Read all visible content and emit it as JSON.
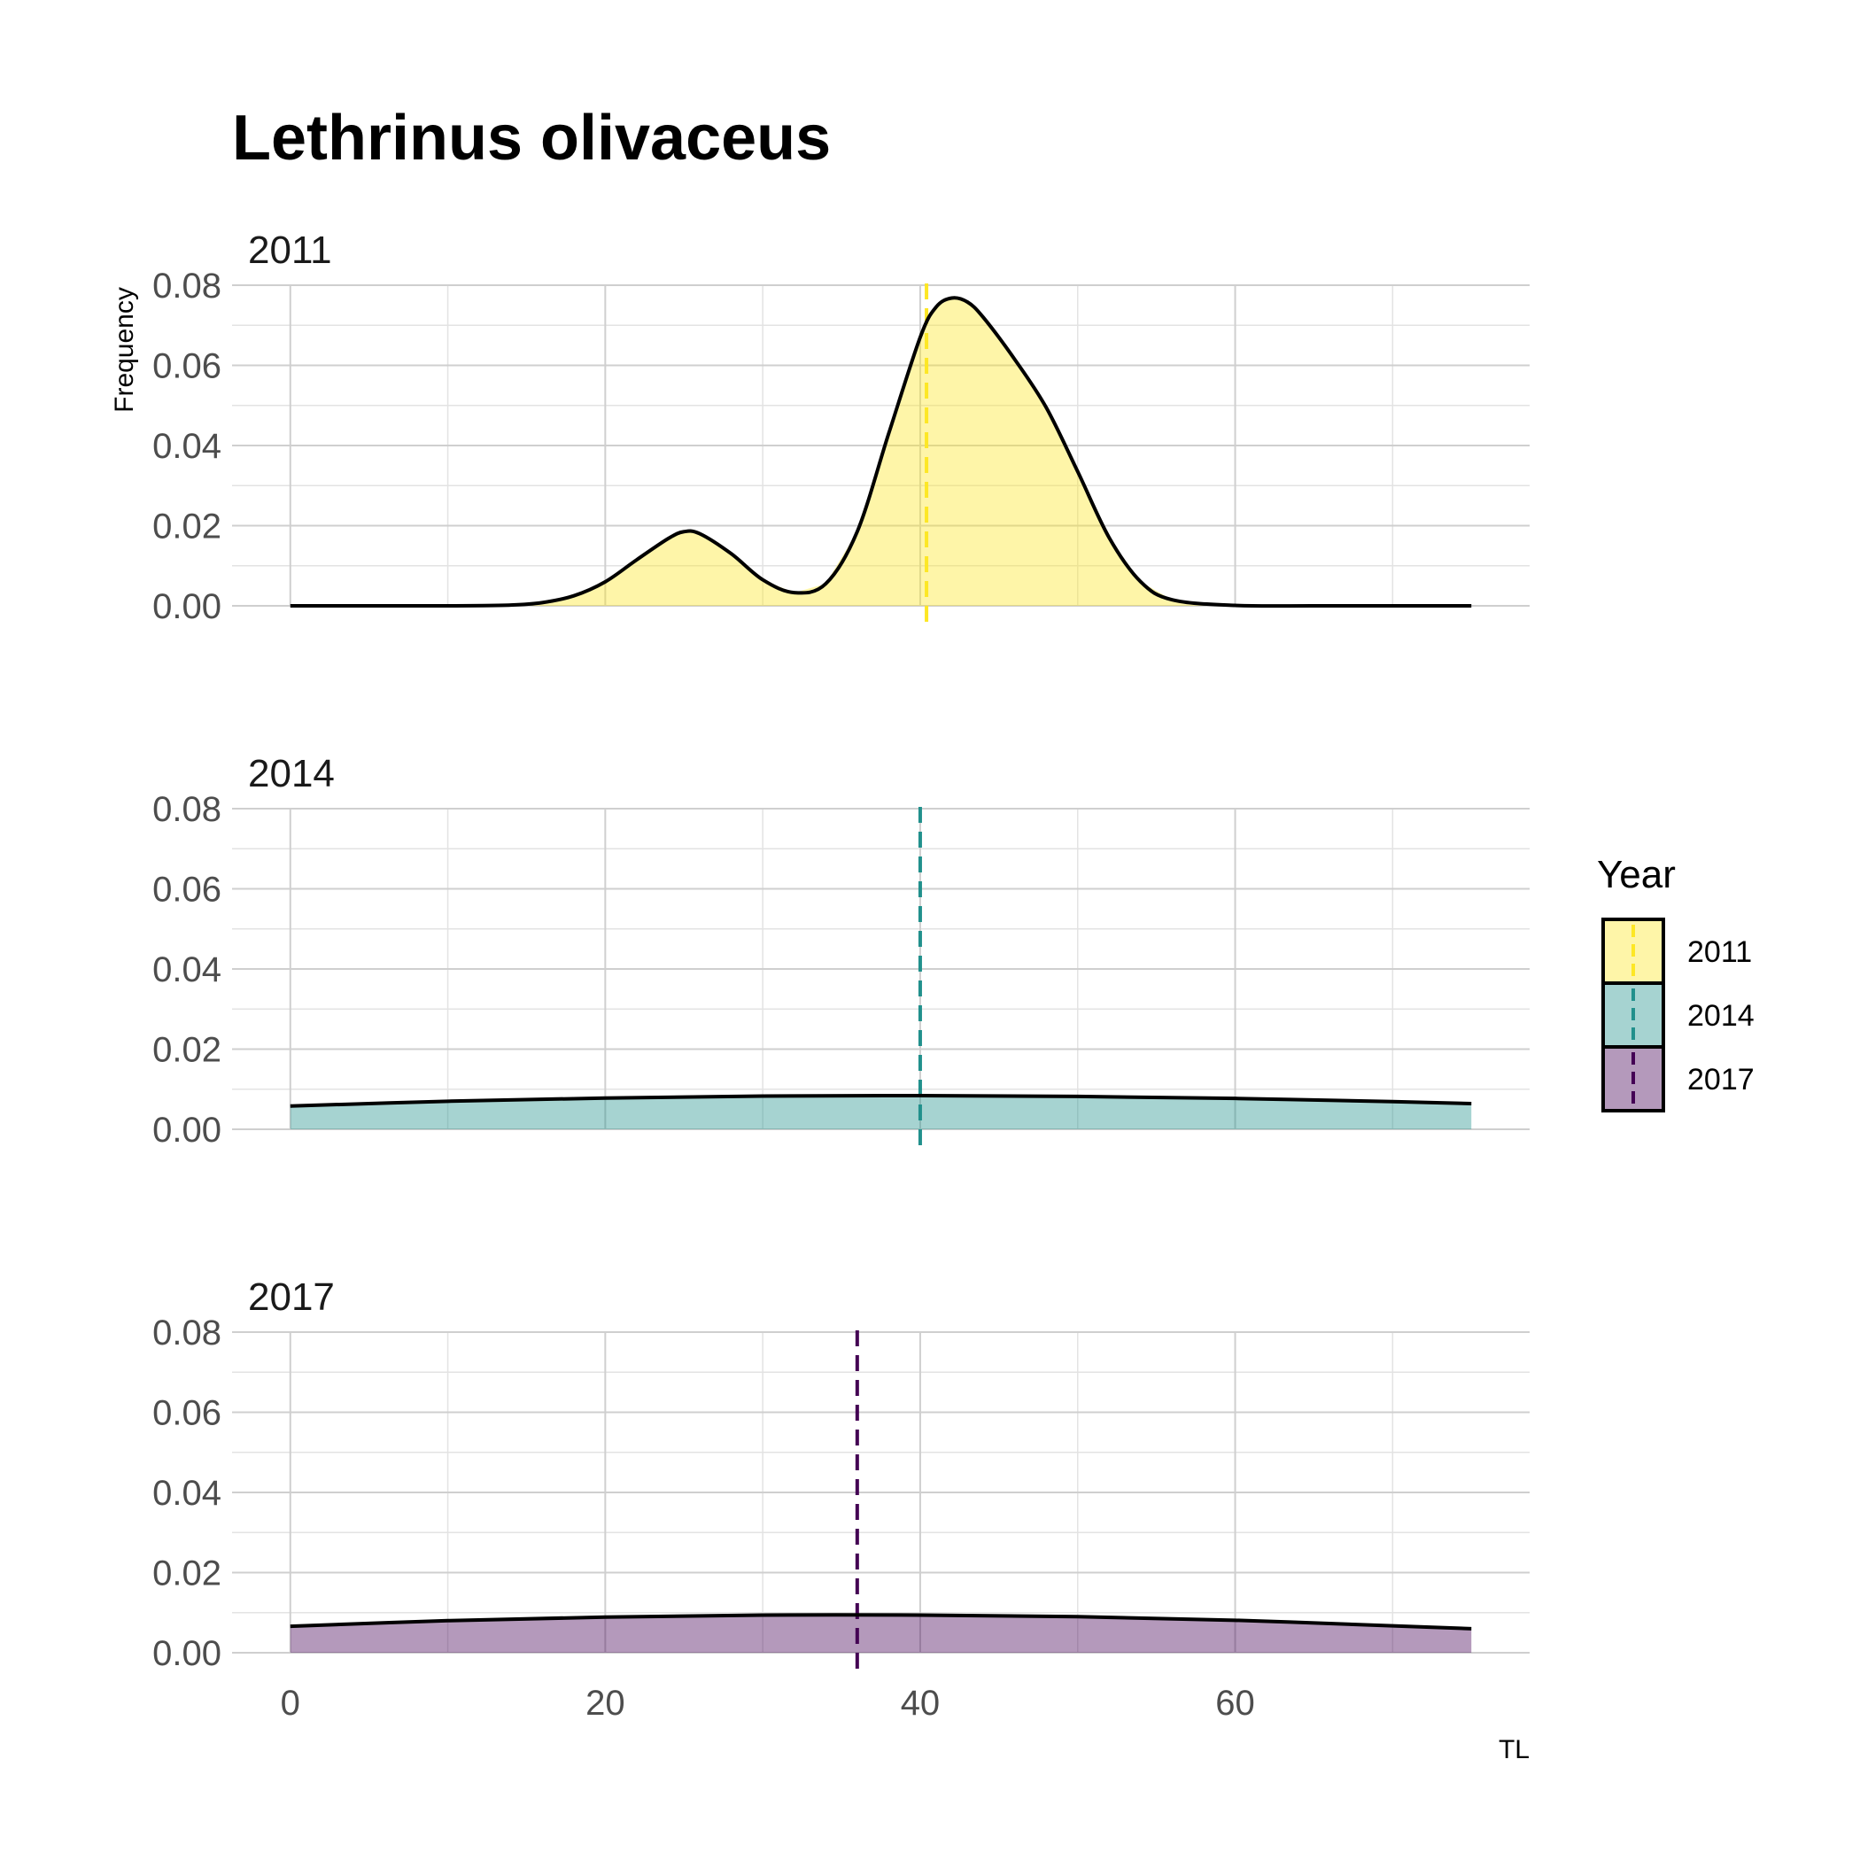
{
  "chart_data": {
    "type": "area",
    "title": "Lethrinus olivaceus",
    "xlabel": "TL",
    "ylabel": "Frequency",
    "xlim": [
      -3.7,
      78.7
    ],
    "ylim": [
      0,
      0.08
    ],
    "x_ticks": [
      0,
      20,
      40,
      60
    ],
    "y_ticks": [
      0.0,
      0.02,
      0.04,
      0.06,
      0.08
    ],
    "y_tick_labels": [
      "0.00",
      "0.02",
      "0.04",
      "0.06",
      "0.08"
    ],
    "grid": true,
    "legend": {
      "title": "Year",
      "position": "right",
      "entries": [
        "2011",
        "2014",
        "2017"
      ]
    },
    "panels": [
      {
        "label": "2011",
        "color": "#FDE725",
        "mean_line": 40.4,
        "x": [
          0,
          5,
          10,
          14,
          16,
          18,
          20,
          22,
          24,
          25,
          26,
          28,
          30,
          32,
          34,
          36,
          38,
          40,
          41,
          42,
          43,
          44,
          46,
          48,
          50,
          52,
          54,
          56,
          60,
          65,
          70,
          75
        ],
        "y": [
          0,
          0,
          0,
          0.0002,
          0.0008,
          0.0025,
          0.006,
          0.0115,
          0.0168,
          0.0185,
          0.018,
          0.013,
          0.0065,
          0.0033,
          0.0055,
          0.0185,
          0.043,
          0.067,
          0.0745,
          0.0768,
          0.0758,
          0.072,
          0.0615,
          0.0495,
          0.0335,
          0.017,
          0.006,
          0.0015,
          0.0001,
          0,
          0,
          0
        ]
      },
      {
        "label": "2014",
        "color": "#21908C",
        "mean_line": 40.0,
        "x": [
          0,
          10,
          20,
          30,
          40,
          50,
          60,
          70,
          75
        ],
        "y": [
          0.0058,
          0.007,
          0.0078,
          0.0083,
          0.0084,
          0.0082,
          0.0077,
          0.0069,
          0.0064
        ]
      },
      {
        "label": "2017",
        "color": "#440154",
        "mean_line": 36.0,
        "x": [
          0,
          10,
          20,
          30,
          40,
          50,
          60,
          70,
          75
        ],
        "y": [
          0.0066,
          0.008,
          0.0089,
          0.0094,
          0.0094,
          0.009,
          0.0081,
          0.0067,
          0.006
        ]
      }
    ]
  }
}
